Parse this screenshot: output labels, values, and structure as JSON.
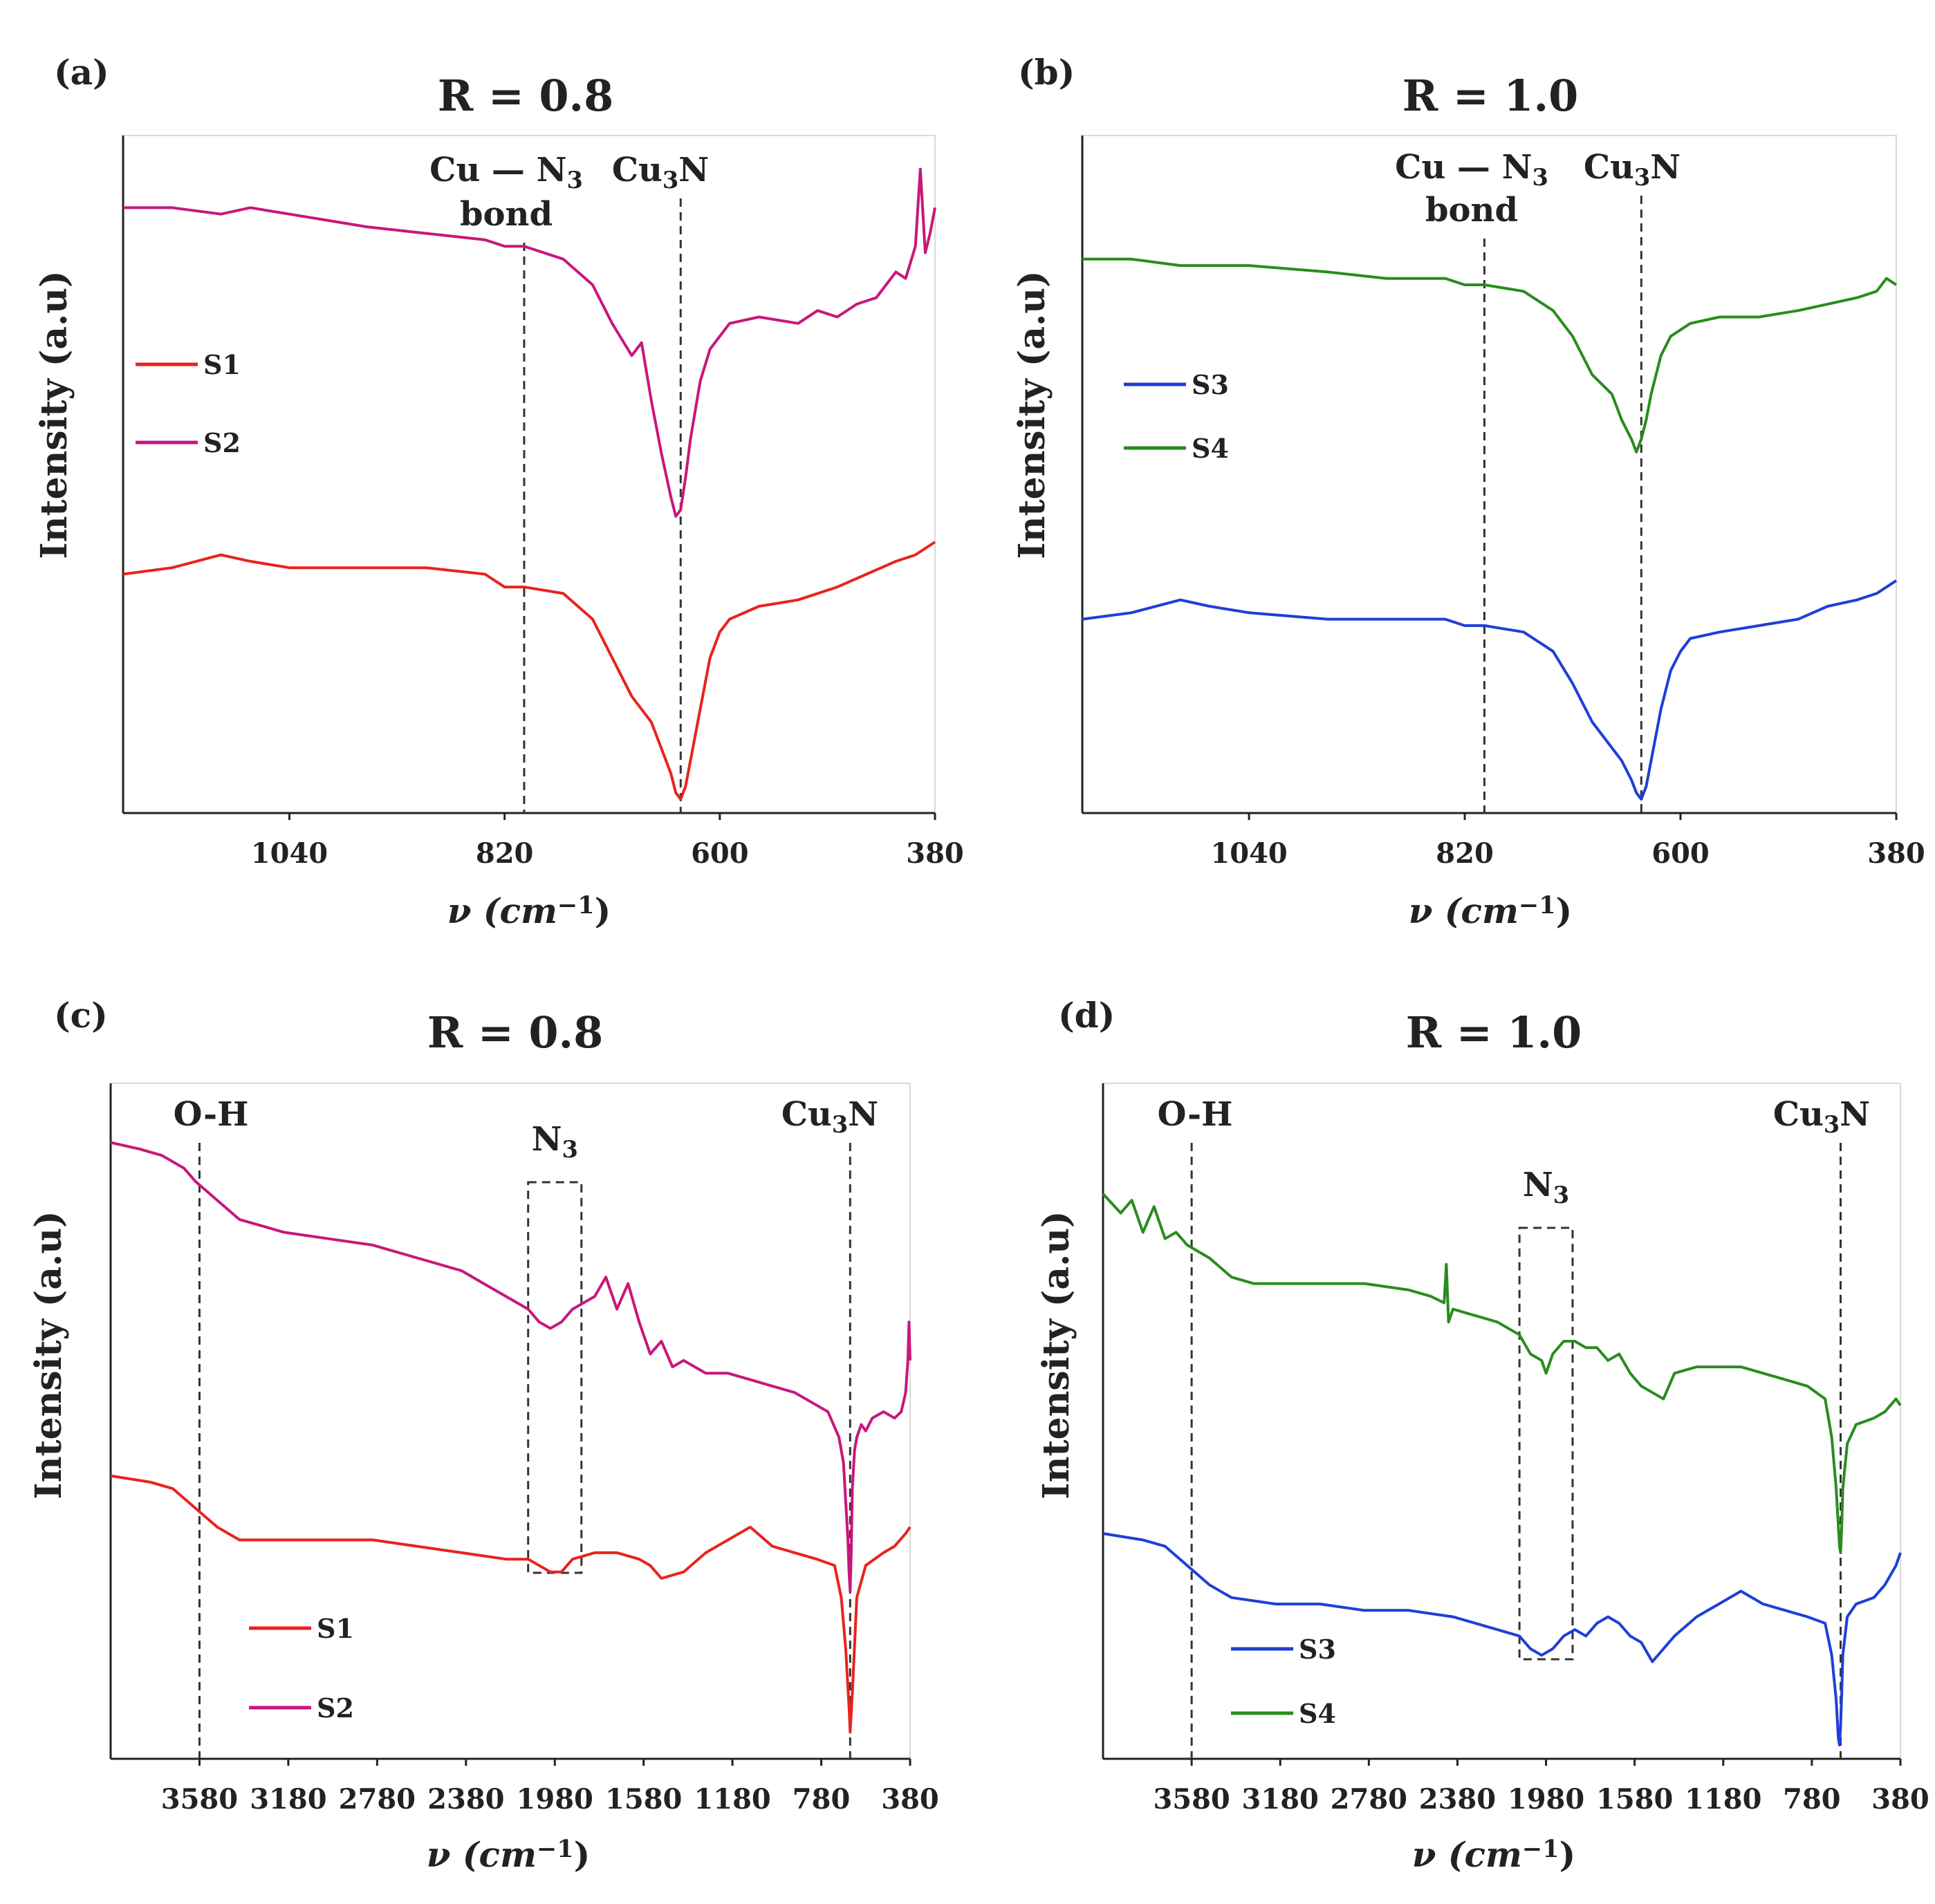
{
  "chart_data": [
    {
      "panel": "(a)",
      "type": "line",
      "title": "R = 0.8",
      "xlabel": "ν (cm⁻¹)",
      "ylabel": "Intensity (a.u)",
      "x_reversed": true,
      "xlim": [
        1210,
        380
      ],
      "xticks": [
        1040,
        820,
        600,
        380
      ],
      "annotations": [
        {
          "label": "Cu — N₃",
          "label2": "bond",
          "kind": "vline",
          "x": 800
        },
        {
          "label": "Cu₃N",
          "kind": "vline",
          "x": 640
        }
      ],
      "legend": [
        "S1",
        "S2"
      ],
      "series": [
        {
          "name": "S1",
          "color": "#e8231e",
          "x": [
            1210,
            1160,
            1110,
            1080,
            1040,
            960,
            900,
            840,
            820,
            800,
            760,
            730,
            710,
            690,
            670,
            660,
            650,
            645,
            640,
            635,
            630,
            620,
            610,
            600,
            590,
            560,
            520,
            480,
            450,
            420,
            400,
            380
          ],
          "y": [
            0.35,
            0.36,
            0.38,
            0.37,
            0.36,
            0.36,
            0.36,
            0.35,
            0.33,
            0.33,
            0.32,
            0.28,
            0.22,
            0.16,
            0.12,
            0.08,
            0.04,
            0.01,
            0.0,
            0.02,
            0.06,
            0.14,
            0.22,
            0.26,
            0.28,
            0.3,
            0.31,
            0.33,
            0.35,
            0.37,
            0.38,
            0.4
          ]
        },
        {
          "name": "S2",
          "color": "#c8177b",
          "x": [
            1210,
            1160,
            1110,
            1080,
            1040,
            960,
            900,
            840,
            820,
            800,
            760,
            730,
            710,
            690,
            680,
            670,
            660,
            650,
            645,
            640,
            635,
            630,
            620,
            610,
            600,
            590,
            560,
            520,
            500,
            480,
            460,
            440,
            420,
            410,
            400,
            395,
            390,
            385,
            380
          ],
          "y": [
            0.92,
            0.92,
            0.91,
            0.92,
            0.91,
            0.89,
            0.88,
            0.87,
            0.86,
            0.86,
            0.84,
            0.8,
            0.74,
            0.69,
            0.71,
            0.62,
            0.54,
            0.47,
            0.44,
            0.45,
            0.5,
            0.56,
            0.65,
            0.7,
            0.72,
            0.74,
            0.75,
            0.74,
            0.76,
            0.75,
            0.77,
            0.78,
            0.82,
            0.81,
            0.86,
            0.98,
            0.85,
            0.88,
            0.92
          ]
        }
      ]
    },
    {
      "panel": "(b)",
      "type": "line",
      "title": "R = 1.0",
      "xlabel": "ν (cm⁻¹)",
      "ylabel": "Intensity (a.u)",
      "x_reversed": true,
      "xlim": [
        1210,
        380
      ],
      "xticks": [
        1040,
        820,
        600,
        380
      ],
      "annotations": [
        {
          "label": "Cu — N₃",
          "label2": "bond",
          "kind": "vline",
          "x": 800
        },
        {
          "label": "Cu₃N",
          "kind": "vline",
          "x": 640
        }
      ],
      "legend": [
        "S3",
        "S4"
      ],
      "series": [
        {
          "name": "S3",
          "color": "#1f3fd6",
          "x": [
            1210,
            1160,
            1110,
            1080,
            1040,
            960,
            900,
            840,
            820,
            800,
            760,
            730,
            710,
            690,
            670,
            660,
            650,
            645,
            640,
            635,
            630,
            620,
            610,
            600,
            590,
            560,
            520,
            480,
            450,
            420,
            400,
            380
          ],
          "y": [
            0.28,
            0.29,
            0.31,
            0.3,
            0.29,
            0.28,
            0.28,
            0.28,
            0.27,
            0.27,
            0.26,
            0.23,
            0.18,
            0.12,
            0.08,
            0.06,
            0.03,
            0.01,
            0.0,
            0.02,
            0.06,
            0.14,
            0.2,
            0.23,
            0.25,
            0.26,
            0.27,
            0.28,
            0.3,
            0.31,
            0.32,
            0.34
          ]
        },
        {
          "name": "S4",
          "color": "#2a8c1e",
          "x": [
            1210,
            1160,
            1110,
            1040,
            960,
            900,
            840,
            820,
            800,
            760,
            730,
            710,
            690,
            670,
            660,
            650,
            645,
            640,
            635,
            630,
            620,
            610,
            600,
            590,
            560,
            520,
            480,
            450,
            420,
            400,
            390,
            380
          ],
          "y": [
            0.84,
            0.84,
            0.83,
            0.83,
            0.82,
            0.81,
            0.81,
            0.8,
            0.8,
            0.79,
            0.76,
            0.72,
            0.66,
            0.63,
            0.59,
            0.56,
            0.54,
            0.56,
            0.59,
            0.63,
            0.69,
            0.72,
            0.73,
            0.74,
            0.75,
            0.75,
            0.76,
            0.77,
            0.78,
            0.79,
            0.81,
            0.8
          ]
        }
      ]
    },
    {
      "panel": "(c)",
      "type": "line",
      "title": "R = 0.8",
      "xlabel": "ν (cm⁻¹)",
      "ylabel": "Intensity (a.u)",
      "x_reversed": true,
      "xlim": [
        3980,
        380
      ],
      "xticks": [
        3580,
        3180,
        2780,
        2380,
        1980,
        1580,
        1180,
        780,
        380
      ],
      "annotations": [
        {
          "label": "O-H",
          "kind": "vline",
          "x": 3580
        },
        {
          "label": "N₃",
          "kind": "box",
          "x": [
            2100,
            1860
          ]
        },
        {
          "label": "Cu₃N",
          "kind": "vline",
          "x": 650
        }
      ],
      "legend": [
        "S1",
        "S2"
      ],
      "series": [
        {
          "name": "S1",
          "color": "#e8231e",
          "x": [
            3980,
            3800,
            3700,
            3600,
            3500,
            3400,
            3200,
            3000,
            2800,
            2600,
            2400,
            2200,
            2100,
            2000,
            1950,
            1900,
            1800,
            1700,
            1600,
            1550,
            1500,
            1400,
            1300,
            1200,
            1100,
            1000,
            900,
            800,
            720,
            690,
            670,
            655,
            650,
            640,
            620,
            580,
            500,
            450,
            400,
            380
          ],
          "y": [
            0.42,
            0.41,
            0.4,
            0.37,
            0.34,
            0.32,
            0.32,
            0.32,
            0.32,
            0.31,
            0.3,
            0.29,
            0.29,
            0.27,
            0.27,
            0.29,
            0.3,
            0.3,
            0.29,
            0.28,
            0.26,
            0.27,
            0.3,
            0.32,
            0.34,
            0.31,
            0.3,
            0.29,
            0.28,
            0.23,
            0.15,
            0.06,
            0.02,
            0.08,
            0.23,
            0.28,
            0.3,
            0.31,
            0.33,
            0.34
          ]
        },
        {
          "name": "S2",
          "color": "#c8177b",
          "x": [
            3980,
            3850,
            3750,
            3650,
            3600,
            3500,
            3400,
            3300,
            3200,
            3000,
            2800,
            2600,
            2400,
            2300,
            2200,
            2100,
            2050,
            2000,
            1950,
            1900,
            1850,
            1800,
            1750,
            1700,
            1650,
            1600,
            1550,
            1500,
            1450,
            1400,
            1300,
            1200,
            1100,
            1000,
            900,
            800,
            750,
            700,
            680,
            670,
            660,
            655,
            650,
            645,
            640,
            630,
            620,
            600,
            580,
            550,
            500,
            450,
            420,
            400,
            390,
            385,
            380
          ],
          "y": [
            0.94,
            0.93,
            0.92,
            0.9,
            0.88,
            0.85,
            0.82,
            0.81,
            0.8,
            0.79,
            0.78,
            0.76,
            0.74,
            0.72,
            0.7,
            0.68,
            0.66,
            0.65,
            0.66,
            0.68,
            0.69,
            0.7,
            0.73,
            0.68,
            0.72,
            0.66,
            0.61,
            0.63,
            0.59,
            0.6,
            0.58,
            0.58,
            0.57,
            0.56,
            0.55,
            0.53,
            0.52,
            0.48,
            0.44,
            0.38,
            0.32,
            0.27,
            0.24,
            0.3,
            0.4,
            0.46,
            0.48,
            0.5,
            0.49,
            0.51,
            0.52,
            0.51,
            0.52,
            0.55,
            0.6,
            0.66,
            0.6
          ]
        }
      ]
    },
    {
      "panel": "(d)",
      "type": "line",
      "title": "R = 1.0",
      "xlabel": "ν (cm⁻¹)",
      "ylabel": "Intensity (a.u)",
      "x_reversed": true,
      "xlim": [
        3980,
        380
      ],
      "xticks": [
        3580,
        3180,
        2780,
        2380,
        1980,
        1580,
        1180,
        780,
        380
      ],
      "annotations": [
        {
          "label": "O-H",
          "kind": "vline",
          "x": 3580
        },
        {
          "label": "N₃",
          "kind": "box",
          "x": [
            2100,
            1860
          ]
        },
        {
          "label": "Cu₃N",
          "kind": "vline",
          "x": 650
        }
      ],
      "legend": [
        "S3",
        "S4"
      ],
      "series": [
        {
          "name": "S3",
          "color": "#1f3fd6",
          "x": [
            3980,
            3800,
            3700,
            3600,
            3500,
            3400,
            3200,
            3000,
            2800,
            2600,
            2400,
            2200,
            2100,
            2050,
            2000,
            1950,
            1900,
            1850,
            1800,
            1750,
            1700,
            1650,
            1600,
            1550,
            1500,
            1450,
            1400,
            1300,
            1200,
            1100,
            1000,
            900,
            800,
            720,
            690,
            670,
            660,
            655,
            650,
            645,
            640,
            620,
            580,
            500,
            450,
            400,
            380
          ],
          "y": [
            0.33,
            0.32,
            0.31,
            0.28,
            0.25,
            0.23,
            0.22,
            0.22,
            0.21,
            0.21,
            0.2,
            0.18,
            0.17,
            0.15,
            0.14,
            0.15,
            0.17,
            0.18,
            0.17,
            0.19,
            0.2,
            0.19,
            0.17,
            0.16,
            0.13,
            0.15,
            0.17,
            0.2,
            0.22,
            0.24,
            0.22,
            0.21,
            0.2,
            0.19,
            0.14,
            0.07,
            0.01,
            0.0,
            0.03,
            0.08,
            0.14,
            0.2,
            0.22,
            0.23,
            0.25,
            0.28,
            0.3
          ]
        },
        {
          "name": "S4",
          "color": "#2a8c1e",
          "x": [
            3980,
            3900,
            3850,
            3800,
            3750,
            3700,
            3650,
            3600,
            3500,
            3400,
            3300,
            3200,
            3000,
            2800,
            2600,
            2500,
            2440,
            2430,
            2420,
            2400,
            2300,
            2200,
            2100,
            2050,
            2000,
            1980,
            1950,
            1900,
            1850,
            1800,
            1750,
            1700,
            1650,
            1600,
            1550,
            1500,
            1450,
            1400,
            1300,
            1200,
            1100,
            1000,
            900,
            800,
            720,
            690,
            670,
            660,
            655,
            650,
            645,
            640,
            620,
            580,
            500,
            450,
            400,
            380
          ],
          "y": [
            0.86,
            0.83,
            0.85,
            0.8,
            0.84,
            0.79,
            0.8,
            0.78,
            0.76,
            0.73,
            0.72,
            0.72,
            0.72,
            0.72,
            0.71,
            0.7,
            0.69,
            0.75,
            0.66,
            0.68,
            0.67,
            0.66,
            0.64,
            0.61,
            0.6,
            0.58,
            0.61,
            0.63,
            0.63,
            0.62,
            0.62,
            0.6,
            0.61,
            0.58,
            0.56,
            0.55,
            0.54,
            0.58,
            0.59,
            0.59,
            0.59,
            0.58,
            0.57,
            0.56,
            0.54,
            0.48,
            0.4,
            0.34,
            0.31,
            0.3,
            0.34,
            0.4,
            0.47,
            0.5,
            0.51,
            0.52,
            0.54,
            0.53
          ]
        }
      ]
    }
  ]
}
